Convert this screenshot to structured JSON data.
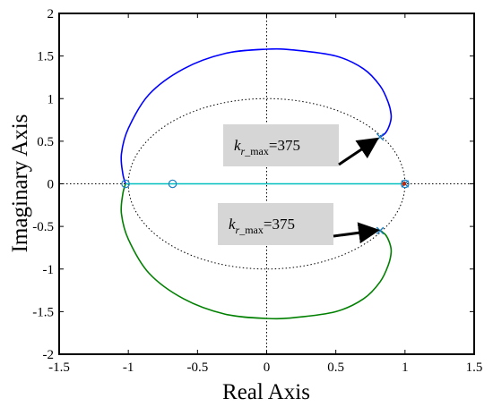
{
  "chart_data": {
    "type": "line",
    "title": "",
    "xlabel": "Real Axis",
    "ylabel": "Imaginary Axis",
    "xlim": [
      -1.5,
      1.5
    ],
    "ylim": [
      -2,
      2
    ],
    "xticks": [
      "-1.5",
      "-1",
      "-0.5",
      "0",
      "0.5",
      "1",
      "1.5"
    ],
    "yticks": [
      "-2",
      "-1.5",
      "-1",
      "-0.5",
      "0",
      "0.5",
      "1",
      "1.5",
      "2"
    ],
    "grid": "dotted zero lines only",
    "unit_circle": {
      "radius": 1,
      "style": "dotted"
    },
    "series": [
      {
        "color": "#0000ff",
        "x": [
          0.82,
          0.86,
          0.89,
          0.9,
          0.88,
          0.82,
          0.7,
          0.5,
          0.2,
          0.0,
          -0.3,
          -0.6,
          -0.85,
          -1.0,
          -1.05,
          -1.04,
          -1.02
        ],
        "y": [
          0.55,
          0.6,
          0.7,
          0.8,
          0.95,
          1.15,
          1.35,
          1.5,
          1.57,
          1.58,
          1.53,
          1.35,
          1.05,
          0.65,
          0.35,
          0.12,
          0.0
        ]
      },
      {
        "color": "#008000",
        "x": [
          0.82,
          0.86,
          0.89,
          0.9,
          0.88,
          0.82,
          0.7,
          0.5,
          0.2,
          0.0,
          -0.3,
          -0.6,
          -0.85,
          -1.0,
          -1.05,
          -1.04,
          -1.02
        ],
        "y": [
          -0.55,
          -0.6,
          -0.7,
          -0.8,
          -0.95,
          -1.15,
          -1.35,
          -1.5,
          -1.57,
          -1.58,
          -1.53,
          -1.35,
          -1.05,
          -0.65,
          -0.35,
          -0.12,
          0.0
        ]
      },
      {
        "color": "#00bfbf",
        "x": [
          -1.02,
          1.0
        ],
        "y": [
          0.0,
          0.0
        ]
      }
    ],
    "zeros": [
      {
        "x": -1.02,
        "y": 0
      },
      {
        "x": -0.68,
        "y": 0
      },
      {
        "x": 1.0,
        "y": 0
      }
    ],
    "poles": [
      {
        "x": 1.0,
        "y": 0
      },
      {
        "x": 0.82,
        "y": 0.55
      },
      {
        "x": 0.82,
        "y": -0.55
      }
    ],
    "annotations": [
      {
        "main": "k",
        "sub": "r_max",
        "value": "=375",
        "points_to": {
          "x": 0.82,
          "y": 0.55
        }
      },
      {
        "main": "k",
        "sub": "r_max",
        "value": "=375",
        "points_to": {
          "x": 0.82,
          "y": -0.55
        }
      }
    ]
  }
}
